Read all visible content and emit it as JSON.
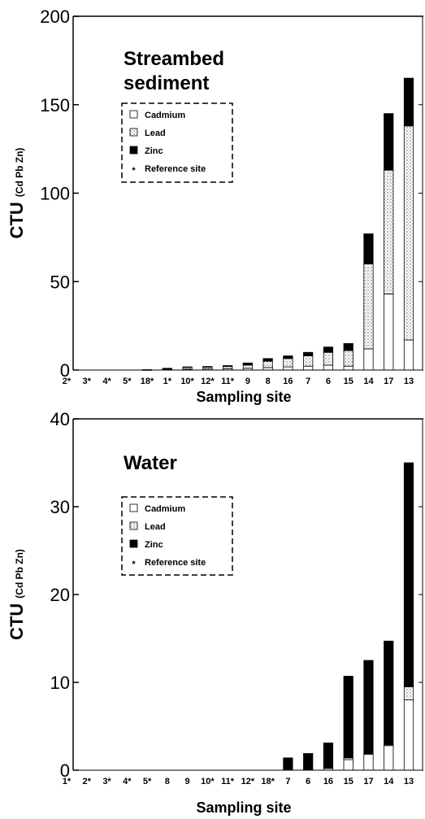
{
  "chart_data": [
    {
      "type": "bar",
      "stacked": true,
      "title": "Streambed sediment",
      "ylabel_main": "CTU",
      "ylabel_sub": "(Cd Pb Zn)",
      "xlabel": "Sampling site",
      "ylim": [
        0,
        200
      ],
      "yticks": [
        0,
        50,
        100,
        150,
        200
      ],
      "legend_position": "upper-left",
      "legend": [
        "Cadmium",
        "Lead",
        "Zinc",
        "Reference site"
      ],
      "legend_marker": "*",
      "categories": [
        "2*",
        "3*",
        "4*",
        "5*",
        "18*",
        "1*",
        "10*",
        "12*",
        "11*",
        "9",
        "8",
        "16",
        "7",
        "6",
        "15",
        "14",
        "17",
        "13"
      ],
      "series": [
        {
          "name": "Cadmium",
          "values": [
            0,
            0,
            0,
            0,
            0.1,
            0.3,
            0.5,
            0.6,
            0.8,
            1.0,
            1.4,
            1.8,
            2.2,
            2.8,
            2.2,
            12,
            43,
            17
          ]
        },
        {
          "name": "Lead",
          "values": [
            0,
            0,
            0,
            0,
            0.1,
            0.3,
            1.0,
            1.0,
            1.2,
            1.8,
            3.6,
            4.7,
            5.8,
            7.2,
            8.8,
            48,
            70,
            121
          ]
        },
        {
          "name": "Zinc",
          "values": [
            0,
            0,
            0,
            0,
            0,
            0.4,
            0.3,
            0.4,
            0.5,
            1.2,
            1.5,
            1.5,
            2.0,
            3.0,
            4.0,
            17,
            32,
            27
          ]
        }
      ],
      "grid": false
    },
    {
      "type": "bar",
      "stacked": true,
      "title": "Water",
      "ylabel_main": "CTU",
      "ylabel_sub": "(Cd Pb Zn)",
      "xlabel": "Sampling site",
      "ylim": [
        0,
        40
      ],
      "yticks": [
        0,
        10,
        20,
        30,
        40
      ],
      "legend_position": "upper-left",
      "legend": [
        "Cadmium",
        "Lead",
        "Zinc",
        "Reference site"
      ],
      "legend_marker": "*",
      "categories": [
        "1*",
        "2*",
        "3*",
        "4*",
        "5*",
        "8",
        "9",
        "10*",
        "11*",
        "12*",
        "18*",
        "7",
        "6",
        "16",
        "15",
        "17",
        "14",
        "13"
      ],
      "series": [
        {
          "name": "Cadmium",
          "values": [
            0,
            0,
            0,
            0,
            0,
            0,
            0,
            0,
            0,
            0,
            0,
            0.1,
            0.1,
            0.2,
            1.2,
            1.8,
            2.8,
            8.0
          ]
        },
        {
          "name": "Lead",
          "values": [
            0,
            0,
            0,
            0,
            0,
            0,
            0,
            0,
            0,
            0,
            0,
            0,
            0,
            0,
            0.2,
            0.1,
            0.1,
            1.5
          ]
        },
        {
          "name": "Zinc",
          "values": [
            0,
            0,
            0,
            0,
            0,
            0,
            0,
            0,
            0,
            0,
            0,
            1.3,
            1.8,
            2.9,
            9.3,
            10.6,
            11.8,
            25.5
          ]
        }
      ],
      "grid": false
    }
  ]
}
